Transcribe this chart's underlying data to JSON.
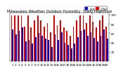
{
  "title": "Milwaukee Weather Outdoor Humidity  Daily High/Low",
  "high_values": [
    99,
    99,
    99,
    99,
    75,
    99,
    72,
    88,
    99,
    88,
    75,
    82,
    62,
    99,
    78,
    88,
    72,
    65,
    55,
    75,
    88,
    99,
    99,
    82,
    99,
    85,
    72,
    88,
    99,
    75
  ],
  "low_values": [
    68,
    58,
    65,
    72,
    42,
    45,
    38,
    52,
    60,
    55,
    48,
    45,
    30,
    58,
    45,
    62,
    40,
    35,
    28,
    38,
    52,
    65,
    68,
    55,
    62,
    50,
    42,
    55,
    68,
    48
  ],
  "bar_width": 0.38,
  "high_color": "#dd0000",
  "low_color": "#0000cc",
  "bg_color": "#ffffff",
  "ylim": [
    0,
    105
  ],
  "yticks": [
    20,
    40,
    60,
    80,
    100
  ],
  "vline_pos": 24.5,
  "legend_high": "High",
  "legend_low": "Low",
  "title_fontsize": 4.0,
  "tick_fontsize": 3.0,
  "n_bars": 30
}
